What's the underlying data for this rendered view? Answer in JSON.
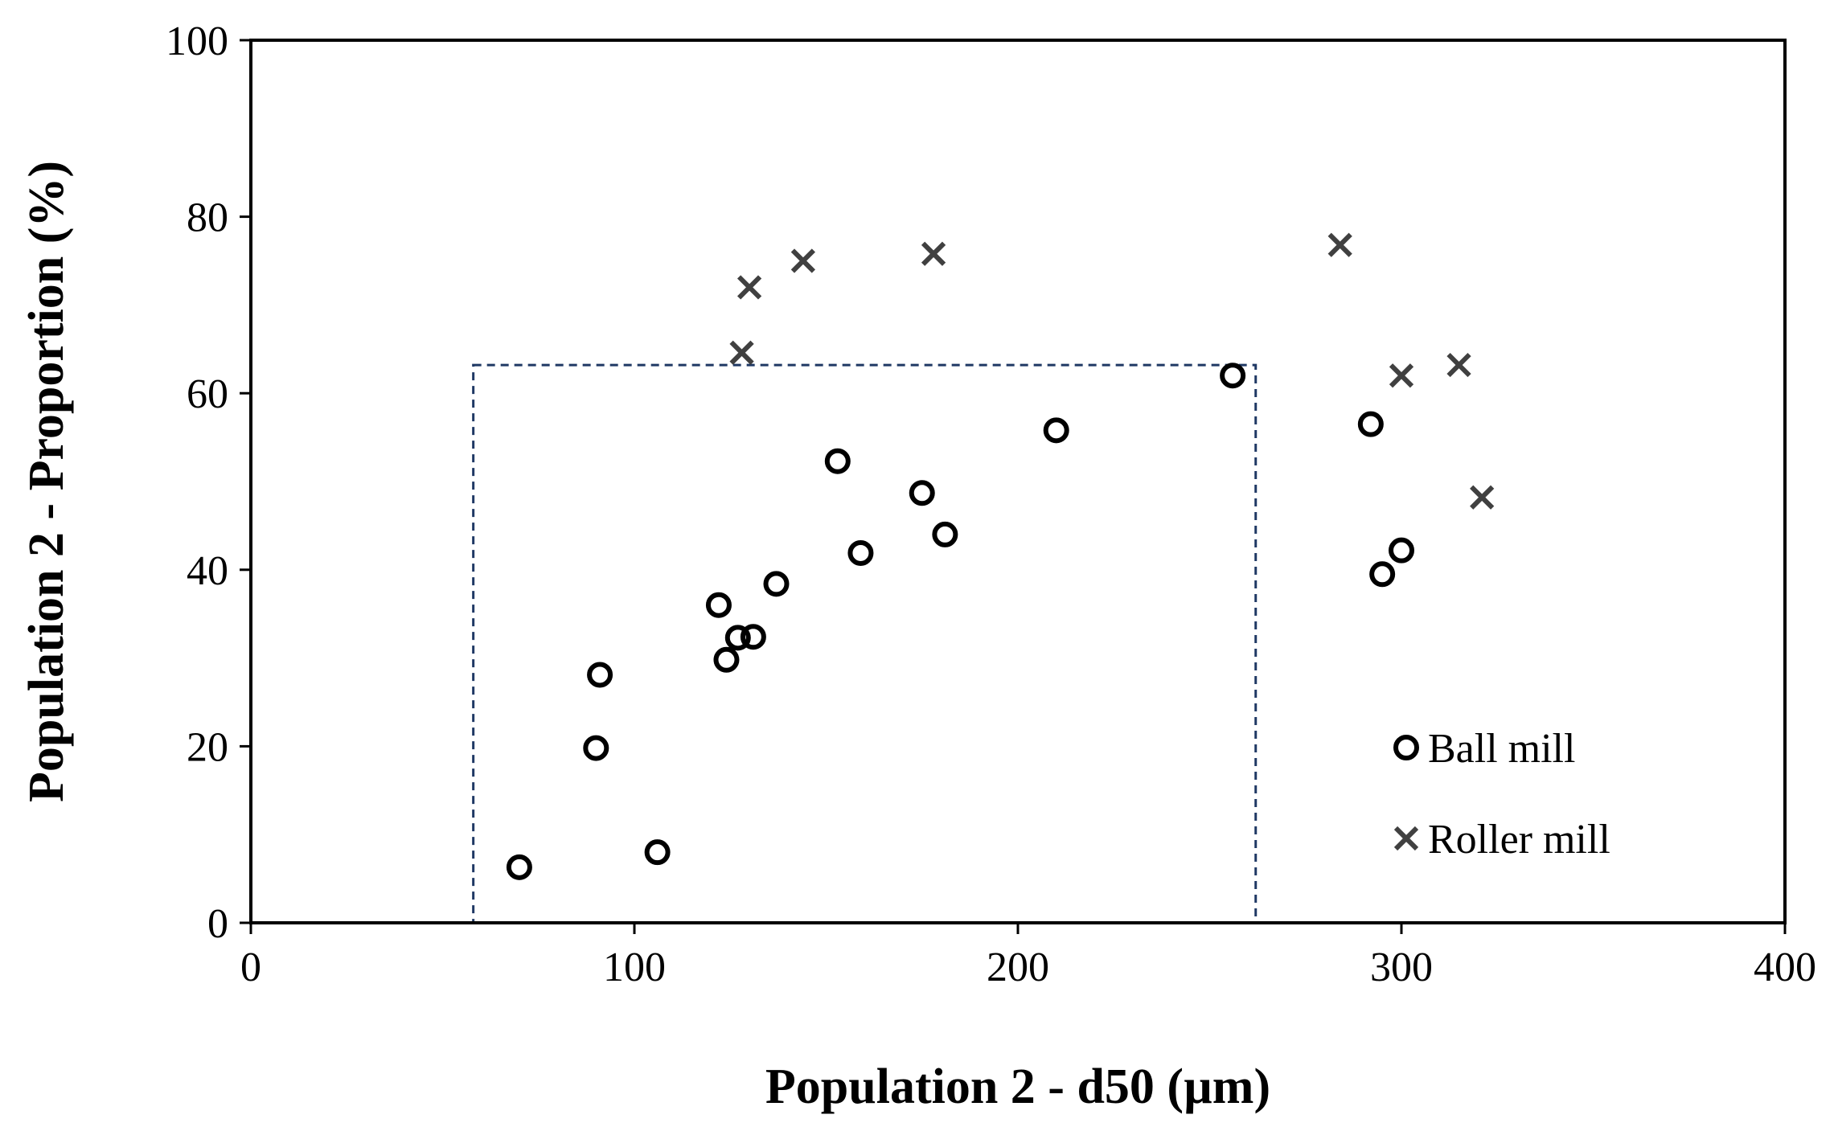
{
  "chart_data": {
    "type": "scatter",
    "title": "",
    "xlabel": "Population 2 - d50 (µm)",
    "ylabel": "Population 2 - Proportion (%)",
    "xlim": [
      0,
      400
    ],
    "ylim": [
      0,
      100
    ],
    "xticks": [
      0,
      100,
      200,
      300,
      400
    ],
    "yticks": [
      0,
      20,
      40,
      60,
      80,
      100
    ],
    "grid": false,
    "legend_position": "bottom-right",
    "series": [
      {
        "name": "Ball mill",
        "marker": "circle",
        "color": "#000000",
        "points": [
          [
            70,
            6.3
          ],
          [
            90,
            19.8
          ],
          [
            91,
            28.1
          ],
          [
            106,
            8.0
          ],
          [
            122,
            36.0
          ],
          [
            124,
            29.8
          ],
          [
            127,
            32.3
          ],
          [
            131,
            32.4
          ],
          [
            137,
            38.4
          ],
          [
            153,
            52.3
          ],
          [
            159,
            41.9
          ],
          [
            175,
            48.7
          ],
          [
            181,
            44.0
          ],
          [
            210,
            55.8
          ],
          [
            256,
            62.0
          ],
          [
            292,
            56.5
          ],
          [
            295,
            39.5
          ],
          [
            300,
            42.2
          ]
        ]
      },
      {
        "name": "Roller mill",
        "marker": "x",
        "color": "#404040",
        "points": [
          [
            128,
            64.6
          ],
          [
            130,
            72.0
          ],
          [
            144,
            75.0
          ],
          [
            178,
            75.8
          ],
          [
            284,
            76.8
          ],
          [
            300,
            62.0
          ],
          [
            315,
            63.2
          ],
          [
            321,
            48.2
          ]
        ]
      }
    ],
    "annotations": [
      {
        "type": "dashed-rectangle",
        "x_range": [
          58,
          262
        ],
        "y_range": [
          0,
          63.2
        ],
        "color": "#1f3864"
      }
    ]
  }
}
